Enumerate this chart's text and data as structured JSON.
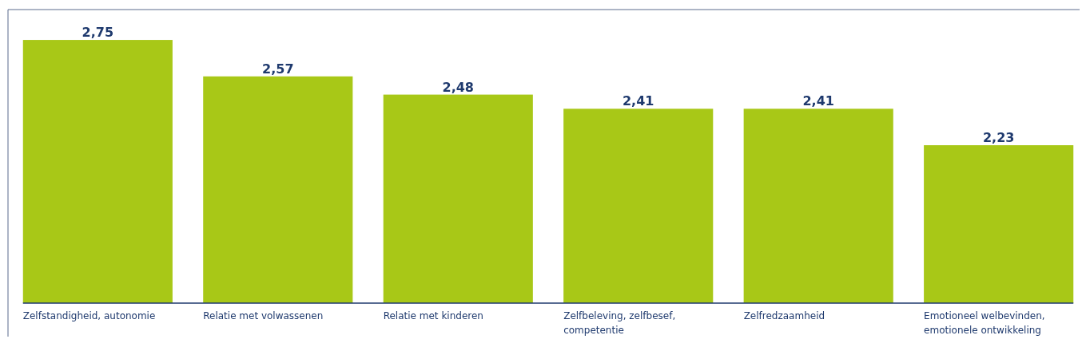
{
  "chart_data": {
    "type": "bar",
    "categories": [
      "Zelfstandigheid, autonomie",
      "Relatie met volwassenen",
      "Relatie met kinderen",
      "Zelfbeleving, zelfbesef, competentie",
      "Zelfredzaamheid",
      "Emotioneel welbevinden, emotionele ontwikkeling"
    ],
    "values": [
      2.75,
      2.57,
      2.48,
      2.41,
      2.41,
      2.23
    ],
    "value_labels": [
      "2,75",
      "2,57",
      "2,48",
      "2,41",
      "2,41",
      "2,23"
    ],
    "color": "#a8c817",
    "ylim": [
      1.45,
      2.9
    ],
    "tick_labels": "x"
  }
}
